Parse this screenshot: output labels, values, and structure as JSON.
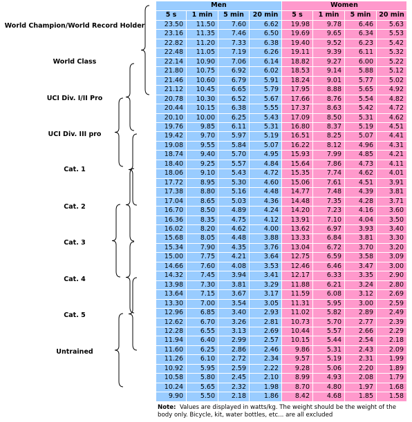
{
  "groups": {
    "men": "Men",
    "women": "Women"
  },
  "columns": [
    "5 s",
    "1 min",
    "5 min",
    "20 min",
    "5 s",
    "1 min",
    "5 min",
    "20 min"
  ],
  "categories": [
    "World Champion/World Record Holder",
    "World Class",
    "UCI Div. I/II Pro",
    "UCI Div. III pro",
    "Cat. 1",
    "Cat. 2",
    "Cat. 3",
    "Cat. 4",
    "Cat. 5",
    "Untrained"
  ],
  "rows": [
    [
      "23.50",
      "11.50",
      "7.60",
      "6.62",
      "19.98",
      "9.78",
      "6.46",
      "5.63"
    ],
    [
      "23.16",
      "11.35",
      "7.46",
      "6.50",
      "19.69",
      "9.65",
      "6.34",
      "5.53"
    ],
    [
      "22.82",
      "11.20",
      "7.33",
      "6.38",
      "19.40",
      "9.52",
      "6.23",
      "5.42"
    ],
    [
      "22.48",
      "11.05",
      "7.19",
      "6.26",
      "19.11",
      "9.39",
      "6.11",
      "5.32"
    ],
    [
      "22.14",
      "10.90",
      "7.06",
      "6.14",
      "18.82",
      "9.27",
      "6.00",
      "5.22"
    ],
    [
      "21.80",
      "10.75",
      "6.92",
      "6.02",
      "18.53",
      "9.14",
      "5.88",
      "5.12"
    ],
    [
      "21.46",
      "10.60",
      "6.79",
      "5.91",
      "18.24",
      "9.01",
      "5.77",
      "5.02"
    ],
    [
      "21.12",
      "10.45",
      "6.65",
      "5.79",
      "17.95",
      "8.88",
      "5.65",
      "4.92"
    ],
    [
      "20.78",
      "10.30",
      "6.52",
      "5.67",
      "17.66",
      "8.76",
      "5.54",
      "4.82"
    ],
    [
      "20.44",
      "10.15",
      "6.38",
      "5.55",
      "17.37",
      "8.63",
      "5.42",
      "4.72"
    ],
    [
      "20.10",
      "10.00",
      "6.25",
      "5.43",
      "17.09",
      "8.50",
      "5.31",
      "4.62"
    ],
    [
      "19.76",
      "9.85",
      "6.11",
      "5.31",
      "16.80",
      "8.37",
      "5.19",
      "4.51"
    ],
    [
      "19.42",
      "9.70",
      "5.97",
      "5.19",
      "16.51",
      "8.25",
      "5.07",
      "4.41"
    ],
    [
      "19.08",
      "9.55",
      "5.84",
      "5.07",
      "16.22",
      "8.12",
      "4.96",
      "4.31"
    ],
    [
      "18.74",
      "9.40",
      "5.70",
      "4.95",
      "15.93",
      "7.99",
      "4.85",
      "4.21"
    ],
    [
      "18.40",
      "9.25",
      "5.57",
      "4.84",
      "15.64",
      "7.86",
      "4.73",
      "4.11"
    ],
    [
      "18.06",
      "9.10",
      "5.43",
      "4.72",
      "15.35",
      "7.74",
      "4.62",
      "4.01"
    ],
    [
      "17.72",
      "8.95",
      "5.30",
      "4.60",
      "15.06",
      "7.61",
      "4.51",
      "3.91"
    ],
    [
      "17.38",
      "8.80",
      "5.16",
      "4.48",
      "14.77",
      "7.48",
      "4.39",
      "3.81"
    ],
    [
      "17.04",
      "8.65",
      "5.03",
      "4.36",
      "14.48",
      "7.35",
      "4.28",
      "3.71"
    ],
    [
      "16.70",
      "8.50",
      "4.89",
      "4.24",
      "14.20",
      "7.23",
      "4.16",
      "3.60"
    ],
    [
      "16.36",
      "8.35",
      "4.75",
      "4.12",
      "13.91",
      "7.10",
      "4.04",
      "3.50"
    ],
    [
      "16.02",
      "8.20",
      "4.62",
      "4.00",
      "13.62",
      "6.97",
      "3.93",
      "3.40"
    ],
    [
      "15.68",
      "8.05",
      "4.48",
      "3.88",
      "13.33",
      "6.84",
      "3.81",
      "3.30"
    ],
    [
      "15.34",
      "7.90",
      "4.35",
      "3.76",
      "13.04",
      "6.72",
      "3.70",
      "3.20"
    ],
    [
      "15.00",
      "7.75",
      "4.21",
      "3.64",
      "12.75",
      "6.59",
      "3.58",
      "3.09"
    ],
    [
      "14.66",
      "7.60",
      "4.08",
      "3.53",
      "12.46",
      "6.46",
      "3.47",
      "3.00"
    ],
    [
      "14.32",
      "7.45",
      "3.94",
      "3.41",
      "12.17",
      "6.33",
      "3.35",
      "2.90"
    ],
    [
      "13.98",
      "7.30",
      "3.81",
      "3.29",
      "11.88",
      "6.21",
      "3.24",
      "2.80"
    ],
    [
      "13.64",
      "7.15",
      "3.67",
      "3.17",
      "11.59",
      "6.08",
      "3.12",
      "2.69"
    ],
    [
      "13.30",
      "7.00",
      "3.54",
      "3.05",
      "11.31",
      "5.95",
      "3.00",
      "2.59"
    ],
    [
      "12.96",
      "6.85",
      "3.40",
      "2.93",
      "11.02",
      "5.82",
      "2.89",
      "2.49"
    ],
    [
      "12.62",
      "6.70",
      "3.26",
      "2.81",
      "10.73",
      "5.70",
      "2.77",
      "2.39"
    ],
    [
      "12.28",
      "6.55",
      "3.13",
      "2.69",
      "10.44",
      "5.57",
      "2.66",
      "2.29"
    ],
    [
      "11.94",
      "6.40",
      "2.99",
      "2.57",
      "10.15",
      "5.44",
      "2.54",
      "2.18"
    ],
    [
      "11.60",
      "6.25",
      "2.86",
      "2.46",
      "9.86",
      "5.31",
      "2.43",
      "2.09"
    ],
    [
      "11.26",
      "6.10",
      "2.72",
      "2.34",
      "9.57",
      "5.19",
      "2.31",
      "1.99"
    ],
    [
      "10.92",
      "5.95",
      "2.59",
      "2.22",
      "9.28",
      "5.06",
      "2.20",
      "1.89"
    ],
    [
      "10.58",
      "5.80",
      "2.45",
      "2.10",
      "8.99",
      "4.93",
      "2.08",
      "1.79"
    ],
    [
      "10.24",
      "5.65",
      "2.32",
      "1.98",
      "8.70",
      "4.80",
      "1.97",
      "1.68"
    ],
    [
      "9.90",
      "5.50",
      "2.18",
      "1.86",
      "8.42",
      "4.68",
      "1.85",
      "1.58"
    ]
  ],
  "note": {
    "label": "Note:",
    "text": "Values are displayed in watts/kg.  The weight should be the weight of the body only.  Bicycle, kit, water bottles, etc... are all excluded"
  },
  "colors": {
    "men": "#99ccff",
    "women": "#ff99cc"
  }
}
